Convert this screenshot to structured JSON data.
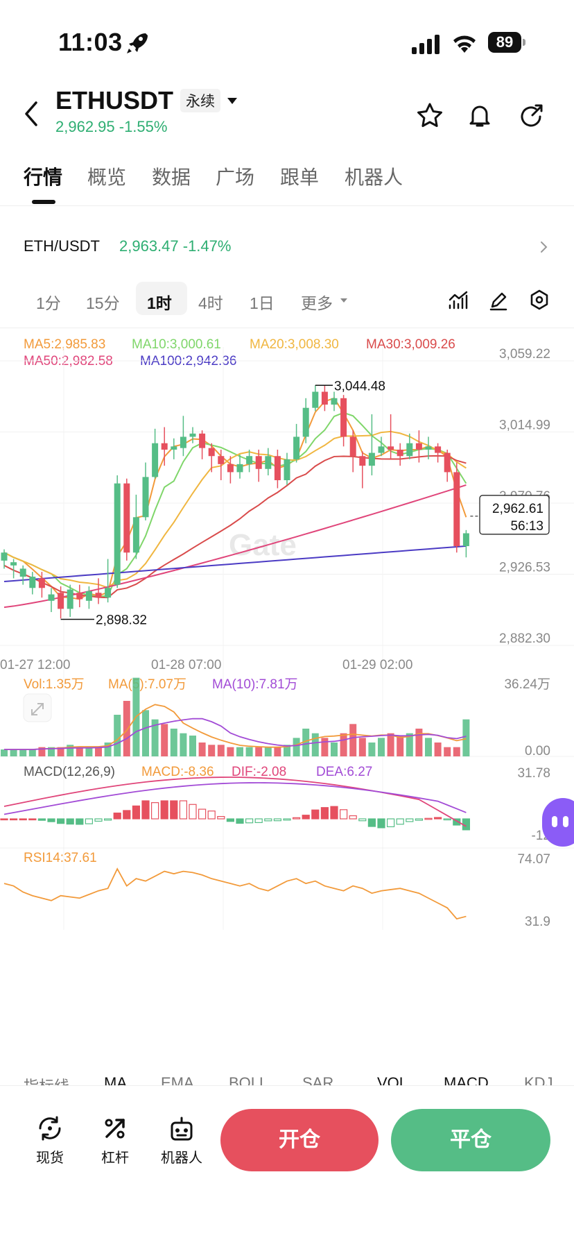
{
  "status_bar": {
    "time": "11:03",
    "battery": "89"
  },
  "header": {
    "pair": "ETHUSDT",
    "contract_type": "永续",
    "price_change": "2,962.95 -1.55%"
  },
  "tabs": [
    {
      "label": "行情",
      "active": true
    },
    {
      "label": "概览",
      "active": false
    },
    {
      "label": "数据",
      "active": false
    },
    {
      "label": "广场",
      "active": false
    },
    {
      "label": "跟单",
      "active": false
    },
    {
      "label": "机器人",
      "active": false
    }
  ],
  "market_row": {
    "pair": "ETH/USDT",
    "price_change": "2,963.47 -1.47%"
  },
  "timeframes": [
    {
      "label": "1分",
      "active": false
    },
    {
      "label": "15分",
      "active": false
    },
    {
      "label": "1时",
      "active": true
    },
    {
      "label": "4时",
      "active": false
    },
    {
      "label": "1日",
      "active": false
    },
    {
      "label": "更多",
      "active": false
    }
  ],
  "ma_legend": {
    "ma5": "MA5:2,985.83",
    "ma10": "MA10:3,000.61",
    "ma20": "MA20:3,008.30",
    "ma30": "MA30:3,009.26",
    "ma50": "MA50:2,982.58",
    "ma100": "MA100:2,942.36"
  },
  "colors": {
    "up": "#55bd86",
    "down": "#e6505e",
    "ma5": "#f29a3a",
    "ma10": "#7fd66a",
    "ma20": "#f0b640",
    "ma30": "#d94b4b",
    "ma50": "#e0457a",
    "ma100": "#4b3bc4"
  },
  "chart_data": {
    "type": "candlestick",
    "y_axis_labels": [
      "3,059.22",
      "3,014.99",
      "2,970.76",
      "2,926.53",
      "2,882.30"
    ],
    "ylim": [
      2882.3,
      3059.22
    ],
    "x_axis_labels": [
      "01-27 12:00",
      "01-28 07:00",
      "01-29 02:00"
    ],
    "high_marker": "3,044.48",
    "low_marker": "2,898.32",
    "current_price": "2,962.61",
    "countdown": "56:13",
    "watermark": "Gate",
    "candles": [
      [
        2935,
        2940,
        2930,
        2942
      ],
      [
        2932,
        2934,
        2924,
        2936
      ],
      [
        2925,
        2930,
        2920,
        2932
      ],
      [
        2918,
        2925,
        2914,
        2928
      ],
      [
        2924,
        2918,
        2912,
        2928
      ],
      [
        2910,
        2914,
        2903,
        2918
      ],
      [
        2915,
        2905,
        2899,
        2919
      ],
      [
        2905,
        2917,
        2900,
        2920
      ],
      [
        2915,
        2911,
        2906,
        2920
      ],
      [
        2910,
        2916,
        2905,
        2919
      ],
      [
        2915,
        2912,
        2908,
        2924
      ],
      [
        2912,
        2918,
        2909,
        2936
      ],
      [
        2920,
        2983,
        2918,
        2988
      ],
      [
        2983,
        2940,
        2935,
        2986
      ],
      [
        2940,
        2962,
        2936,
        2976
      ],
      [
        2962,
        2987,
        2960,
        2996
      ],
      [
        2987,
        3008,
        2986,
        3017
      ],
      [
        3008,
        3004,
        2994,
        3018
      ],
      [
        3004,
        3006,
        2998,
        3011
      ],
      [
        3005,
        3012,
        3000,
        3025
      ],
      [
        3012,
        3014,
        3008,
        3018
      ],
      [
        3014,
        3005,
        2998,
        3016
      ],
      [
        3005,
        3000,
        2990,
        3008
      ],
      [
        3000,
        2995,
        2985,
        3004
      ],
      [
        2995,
        2990,
        2983,
        3000
      ],
      [
        2990,
        2995,
        2986,
        3001
      ],
      [
        2995,
        3000,
        2990,
        3004
      ],
      [
        3000,
        2992,
        2984,
        3004
      ],
      [
        2992,
        3000,
        2988,
        3005
      ],
      [
        3000,
        2985,
        2980,
        3004
      ],
      [
        2985,
        2998,
        2982,
        3002
      ],
      [
        2998,
        3012,
        2996,
        3020
      ],
      [
        3012,
        3030,
        3008,
        3036
      ],
      [
        3030,
        3040,
        3028,
        3044
      ],
      [
        3040,
        3032,
        3028,
        3044
      ],
      [
        3032,
        3036,
        3028,
        3040
      ],
      [
        3036,
        3012,
        3006,
        3038
      ],
      [
        3012,
        3000,
        2990,
        3016
      ],
      [
        3000,
        2994,
        2980,
        3003
      ],
      [
        2994,
        3002,
        2988,
        3026
      ],
      [
        3002,
        3006,
        3000,
        3012
      ],
      [
        3006,
        3004,
        2998,
        3026
      ],
      [
        3004,
        3000,
        2994,
        3008
      ],
      [
        3000,
        3008,
        2998,
        3014
      ],
      [
        3008,
        3004,
        2996,
        3016
      ],
      [
        3004,
        3006,
        2998,
        3012
      ],
      [
        3006,
        3002,
        2996,
        3008
      ],
      [
        3002,
        2990,
        2984,
        3004
      ],
      [
        2990,
        2944,
        2940,
        2996
      ],
      [
        2944,
        2952,
        2937,
        2954
      ]
    ],
    "volume": {
      "labels": [
        "Vol:1.35万",
        "MA(5):7.07万",
        "MA(10):7.81万"
      ],
      "max_label": "36.24万",
      "min_label": "0.00",
      "values": [
        3,
        3,
        3,
        3,
        4,
        4,
        4,
        5,
        4,
        4,
        4,
        6,
        18,
        24,
        34,
        20,
        16,
        14,
        12,
        10,
        9,
        6,
        5,
        5,
        4,
        4,
        4,
        4,
        4,
        4,
        5,
        8,
        12,
        10,
        8,
        6,
        10,
        14,
        8,
        6,
        8,
        10,
        9,
        10,
        12,
        8,
        6,
        4,
        4,
        16
      ]
    },
    "macd": {
      "labels": [
        "MACD(12,26,9)",
        "MACD:-8.36",
        "DIF:-2.08",
        "DEA:6.27"
      ],
      "max_label": "31.78",
      "min_label": "-12"
    },
    "rsi": {
      "label": "RSI14:37.61",
      "max_label": "74.07",
      "min_label": "31.9",
      "values": [
        62,
        60,
        55,
        52,
        50,
        48,
        52,
        51,
        50,
        53,
        56,
        58,
        74,
        60,
        66,
        64,
        68,
        72,
        70,
        72,
        71,
        69,
        66,
        64,
        62,
        60,
        62,
        58,
        56,
        60,
        64,
        66,
        62,
        64,
        60,
        58,
        56,
        60,
        58,
        54,
        56,
        57,
        58,
        56,
        54,
        50,
        46,
        42,
        33,
        35
      ]
    }
  },
  "indicators": [
    "指标线",
    "MA",
    "EMA",
    "BOLL",
    "SAR",
    "VOL",
    "MACD",
    "KDJ"
  ],
  "bottom_bar": {
    "spot": "现货",
    "leverage": "杠杆",
    "bot": "机器人",
    "open_label": "开仓",
    "close_label": "平仓"
  }
}
